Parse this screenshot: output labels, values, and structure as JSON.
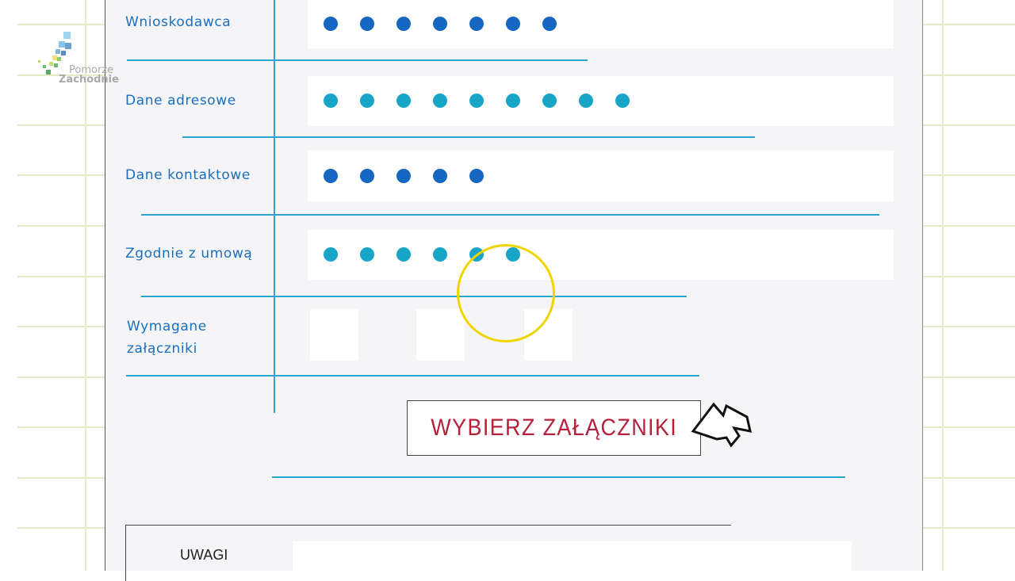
{
  "logo": {
    "line1": "Pomorze",
    "line2": "Zachodnie"
  },
  "form": {
    "rows": [
      {
        "label": "Wnioskodawca",
        "dots": 7,
        "color": "#1466c0"
      },
      {
        "label": "Dane adresowe",
        "dots": 9,
        "color": "#19a5c8"
      },
      {
        "label": "Dane kontaktowe",
        "dots": 5,
        "color": "#1466c0"
      },
      {
        "label": "Zgodnie z umową",
        "dots": 6,
        "color": "#19a5c8"
      }
    ],
    "attachments_label_1": "Wymagane",
    "attachments_label_2": "załączniki",
    "button_label": "WYBIERZ ZAŁĄCZNIKI",
    "remarks_label": "UWAGI"
  },
  "colors": {
    "accent": "#2aa6cc",
    "button_text": "#b5213b",
    "highlight": "#f0d400"
  }
}
